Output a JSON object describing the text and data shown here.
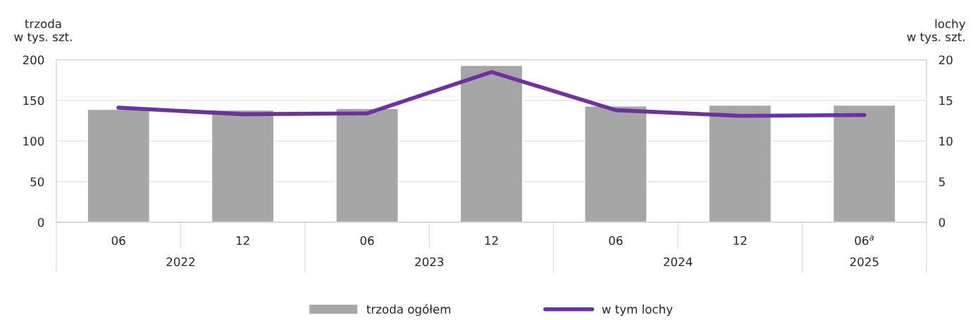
{
  "chart_data": {
    "type": "bar",
    "categories": [
      "06",
      "12",
      "06",
      "12",
      "06",
      "12",
      "06$^{a}$"
    ],
    "ylabel": "trzoda\nw tys. szt.",
    "y2label": "lochy\nw tys. szt.",
    "series": [
      {
        "name": "trzoda ogółem",
        "color": "#a6a6a6",
        "values": [
          139,
          138,
          140,
          193,
          143,
          144,
          144
        ]
      },
      {
        "name": "w tym lochy",
        "type": "line",
        "axis": "y2",
        "color": "#7030a0",
        "values": [
          14.1,
          13.3,
          13.4,
          18.5,
          13.8,
          13.1,
          13.2
        ]
      }
    ],
    "ylim": [
      0,
      200
    ],
    "yticks": [
      0,
      50,
      100,
      150,
      200
    ],
    "y2lim": [
      0,
      20
    ],
    "y2ticks": [
      0,
      5,
      10,
      15,
      20
    ],
    "annotations": [
      "2022",
      "2023",
      "2024",
      "2025"
    ],
    "grid": "y",
    "legend": "bottom",
    "marker": "none",
    "line_style": "solid"
  }
}
